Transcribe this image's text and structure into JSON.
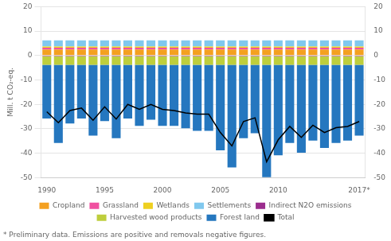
{
  "chart_data": {
    "type": "bar",
    "ylabel": "Mill. t CO₂-eq.",
    "annotations": [
      "* Preliminary data. Emissions are positive and removals negative figures."
    ],
    "categories": [
      "1990",
      null,
      null,
      null,
      null,
      "1995",
      null,
      null,
      null,
      null,
      "2000",
      null,
      null,
      null,
      null,
      "2005",
      null,
      null,
      null,
      null,
      "2010",
      null,
      null,
      null,
      null,
      null,
      null,
      "2017*"
    ],
    "series": [
      {
        "name": "Cropland",
        "type": "bar",
        "color": "#F4A020",
        "values": [
          2.5,
          2.5,
          2.5,
          2.5,
          2.5,
          2.5,
          2.5,
          2.5,
          2.5,
          2.5,
          2.5,
          2.5,
          2.5,
          2.5,
          2.5,
          2.5,
          2.5,
          2.5,
          2.5,
          2.5,
          2.5,
          2.5,
          2.5,
          2.5,
          2.5,
          2.5,
          2.5,
          2.5
        ]
      },
      {
        "name": "Grassland",
        "type": "bar",
        "color": "#F050A0",
        "values": [
          0.7,
          0.7,
          0.7,
          0.7,
          0.7,
          0.7,
          0.7,
          0.7,
          0.7,
          0.7,
          0.7,
          0.7,
          0.7,
          0.7,
          0.7,
          0.7,
          0.7,
          0.7,
          0.7,
          0.7,
          0.7,
          0.7,
          0.7,
          0.7,
          0.7,
          0.7,
          0.7,
          0.7
        ]
      },
      {
        "name": "Wetlands",
        "type": "bar",
        "color": "#EED020",
        "values": [
          0.5,
          0.5,
          0.5,
          0.5,
          0.5,
          0.5,
          0.5,
          0.5,
          0.5,
          0.5,
          0.5,
          0.5,
          0.5,
          0.5,
          0.5,
          0.5,
          0.5,
          0.5,
          0.5,
          0.5,
          0.5,
          0.5,
          0.5,
          0.5,
          0.5,
          0.5,
          0.5,
          0.5
        ]
      },
      {
        "name": "Settlements",
        "type": "bar",
        "color": "#80C8EE",
        "values": [
          2.5,
          2.5,
          2.5,
          2.5,
          2.5,
          2.5,
          2.5,
          2.5,
          2.5,
          2.5,
          2.5,
          2.5,
          2.5,
          2.5,
          2.5,
          2.5,
          2.5,
          2.5,
          2.5,
          2.5,
          2.5,
          2.5,
          2.5,
          2.5,
          2.5,
          2.5,
          2.5,
          2.5
        ]
      },
      {
        "name": "Indirect N2O emissions",
        "type": "bar",
        "color": "#9B2D8E",
        "values": [
          -0.3,
          -0.3,
          -0.3,
          -0.3,
          -0.3,
          -0.3,
          -0.3,
          -0.3,
          -0.3,
          -0.3,
          -0.3,
          -0.3,
          -0.3,
          -0.3,
          -0.3,
          -0.3,
          -0.3,
          -0.3,
          -0.3,
          -0.3,
          -0.3,
          -0.3,
          -0.3,
          -0.3,
          -0.3,
          -0.3,
          -0.3,
          -0.3
        ]
      },
      {
        "name": "Harvested wood products",
        "type": "bar",
        "color": "#BECE3C",
        "values": [
          -3.5,
          -3.5,
          -3.5,
          -3.5,
          -3.5,
          -3.5,
          -3.5,
          -3.5,
          -3.5,
          -3.5,
          -3.5,
          -3.5,
          -3.5,
          -3.5,
          -3.5,
          -3.5,
          -3.5,
          -3.5,
          -3.5,
          -3.5,
          -3.5,
          -3.5,
          -3.5,
          -3.5,
          -3.5,
          -3.5,
          -3.5,
          -3.5
        ]
      },
      {
        "name": "Forest land",
        "type": "bar",
        "color": "#2577BF",
        "values": [
          -22.0,
          -32.0,
          -24.0,
          -22.0,
          -29.0,
          -23.0,
          -30.0,
          -22.0,
          -25.0,
          -22.5,
          -25.0,
          -25.0,
          -26.0,
          -27.0,
          -27.0,
          -35.0,
          -42.0,
          -30.0,
          -28.0,
          -46.0,
          -37.0,
          -32.0,
          -36.0,
          -31.0,
          -34.0,
          -32.0,
          -31.0,
          -29.0
        ]
      },
      {
        "name": "Total",
        "type": "line",
        "color": "#000000",
        "values": [
          -23.0,
          -27.5,
          -22.5,
          -21.5,
          -26.5,
          -21.0,
          -26.0,
          -20.0,
          -22.0,
          -20.0,
          -22.0,
          -22.5,
          -23.5,
          -24.0,
          -24.0,
          -31.5,
          -37.0,
          -27.0,
          -25.5,
          -43.5,
          -34.5,
          -29.0,
          -33.5,
          -28.5,
          -31.5,
          -29.5,
          -29.0,
          -27.0
        ]
      }
    ],
    "stacked": true,
    "ylim": [
      -50,
      20
    ],
    "yticks": [
      -50,
      -40,
      -30,
      -20,
      -10,
      0,
      10,
      20
    ],
    "y2lim": [
      -50,
      20
    ],
    "y2ticks": [
      -50,
      -40,
      -30,
      -20,
      -10,
      0,
      10,
      20
    ],
    "grid": true,
    "legend": "bottom"
  }
}
